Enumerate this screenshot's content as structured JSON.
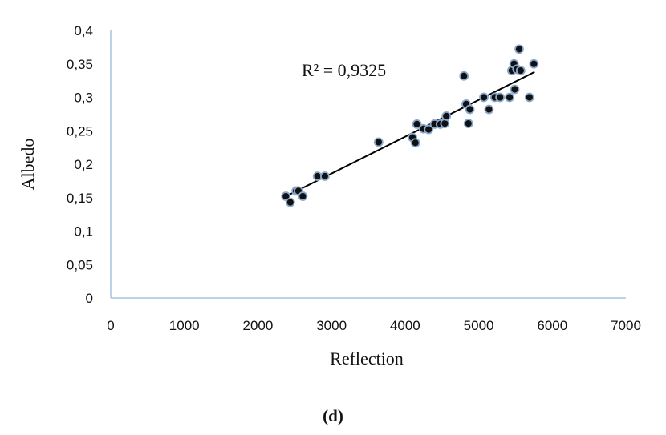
{
  "chart_data": {
    "type": "scatter",
    "xlabel": "Reflection",
    "ylabel": "Albedo",
    "xlim": [
      0,
      7000
    ],
    "ylim": [
      0,
      0.4
    ],
    "x_ticks": [
      0,
      1000,
      2000,
      3000,
      4000,
      5000,
      6000,
      7000
    ],
    "x_tick_labels": [
      "0",
      "1000",
      "2000",
      "3000",
      "4000",
      "5000",
      "6000",
      "7000"
    ],
    "y_ticks": [
      0,
      0.05,
      0.1,
      0.15,
      0.2,
      0.25,
      0.3,
      0.35,
      0.4
    ],
    "y_tick_labels": [
      "0",
      "0,05",
      "0,1",
      "0,15",
      "0,2",
      "0,25",
      "0,3",
      "0,35",
      "0,4"
    ],
    "grid": false,
    "annotation": "R² = 0,9325",
    "caption": "(d)",
    "trendline": {
      "x": [
        2400,
        5760
      ],
      "y": [
        0.153,
        0.338
      ]
    },
    "colors": {
      "marker_fill": "#111111",
      "marker_edge": "#8aa8cc",
      "axis": "#a9c4df",
      "trendline": "#000000"
    },
    "points": {
      "x": [
        2380,
        2440,
        2520,
        2550,
        2610,
        2810,
        2910,
        3640,
        4100,
        4140,
        4160,
        4250,
        4320,
        4400,
        4480,
        4540,
        4560,
        4800,
        4830,
        4860,
        4880,
        5070,
        5140,
        5220,
        5290,
        5420,
        5450,
        5480,
        5490,
        5520,
        5550,
        5570,
        5690,
        5750
      ],
      "y": [
        0.152,
        0.143,
        0.16,
        0.16,
        0.152,
        0.182,
        0.182,
        0.233,
        0.24,
        0.232,
        0.26,
        0.253,
        0.252,
        0.26,
        0.26,
        0.261,
        0.272,
        0.332,
        0.29,
        0.261,
        0.282,
        0.3,
        0.282,
        0.3,
        0.3,
        0.3,
        0.34,
        0.35,
        0.312,
        0.342,
        0.372,
        0.34,
        0.3,
        0.35
      ]
    }
  }
}
